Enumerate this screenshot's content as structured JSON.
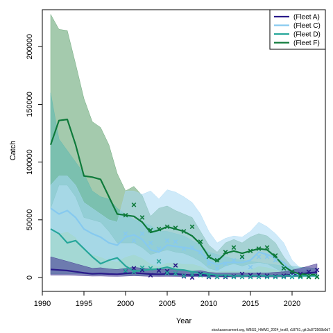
{
  "chart_data": {
    "type": "line",
    "xlabel": "Year",
    "ylabel": "Catch",
    "xlim": [
      1990,
      2024
    ],
    "ylim": [
      -12000,
      232000
    ],
    "x_ticks": [
      1990,
      1995,
      2000,
      2005,
      2010,
      2015,
      2020
    ],
    "y_ticks": [
      0,
      50000,
      100000,
      150000,
      200000
    ],
    "x_tick_labels": [
      "1990",
      "1995",
      "2000",
      "2005",
      "2010",
      "2015",
      "2020"
    ],
    "y_tick_labels": [
      "0",
      "50000",
      "100000",
      "150000",
      "200000"
    ],
    "grid": false,
    "legend_position": "top-right",
    "caption": "stockassessment.org, WBSS_HAWG_2024_test0, r18761, git:3c872568b0d7",
    "series": [
      {
        "name": "(Fleet A)",
        "color": "#2a1a8a",
        "band_color": "#3f2f8f",
        "x": [
          1991,
          1992,
          1993,
          1994,
          1995,
          1996,
          1997,
          1998,
          1999,
          2000,
          2001,
          2002,
          2003,
          2004,
          2005,
          2006,
          2007,
          2008,
          2009,
          2010,
          2011,
          2012,
          2013,
          2014,
          2015,
          2016,
          2017,
          2018,
          2019,
          2020,
          2021,
          2022,
          2023
        ],
        "y": [
          7000,
          6500,
          6000,
          5000,
          4000,
          3200,
          3500,
          3000,
          2800,
          3500,
          4000,
          3500,
          3000,
          2800,
          3000,
          3000,
          2500,
          2000,
          2500,
          1800,
          1500,
          1500,
          1500,
          1500,
          1500,
          1500,
          1500,
          1600,
          1800,
          2500,
          3000,
          4000,
          4500
        ],
        "lower": [
          2000,
          2000,
          2000,
          1800,
          1500,
          1200,
          1300,
          1100,
          1000,
          1200,
          1500,
          1200,
          1000,
          900,
          1000,
          900,
          800,
          600,
          800,
          500,
          500,
          500,
          500,
          500,
          500,
          500,
          500,
          500,
          600,
          800,
          1000,
          1500,
          1500
        ],
        "upper": [
          18000,
          16000,
          14000,
          12000,
          10000,
          8000,
          8500,
          7500,
          7000,
          8000,
          9000,
          8000,
          7500,
          7000,
          7500,
          7000,
          6500,
          5500,
          6000,
          4500,
          4000,
          4000,
          4000,
          4000,
          4000,
          4000,
          4000,
          4500,
          5000,
          6500,
          8000,
          10000,
          12000
        ],
        "observed_x": [
          2000,
          2001,
          2002,
          2003,
          2004,
          2005,
          2006,
          2007,
          2008,
          2009,
          2010,
          2011,
          2012,
          2013,
          2014,
          2015,
          2016,
          2017,
          2018,
          2019,
          2020,
          2021,
          2022,
          2023
        ],
        "observed_y": [
          5500,
          8000,
          6500,
          2000,
          6000,
          5500,
          10500,
          1000,
          0,
          3000,
          500,
          500,
          500,
          1000,
          3000,
          2000,
          2500,
          1500,
          1000,
          1500,
          3000,
          3000,
          5000,
          6500
        ]
      },
      {
        "name": "(Fleet C)",
        "color": "#86c9ef",
        "band_color": "#a8d8f4",
        "x": [
          1991,
          1992,
          1993,
          1994,
          1995,
          1996,
          1997,
          1998,
          1999,
          2000,
          2001,
          2002,
          2003,
          2004,
          2005,
          2006,
          2007,
          2008,
          2009,
          2010,
          2011,
          2012,
          2013,
          2014,
          2015,
          2016,
          2017,
          2018,
          2019,
          2020,
          2021,
          2022,
          2023
        ],
        "y": [
          60000,
          55000,
          58000,
          52000,
          42000,
          38000,
          35000,
          30000,
          28000,
          35000,
          37000,
          33000,
          24000,
          22000,
          28000,
          27000,
          26000,
          25000,
          22000,
          14000,
          11000,
          13000,
          13000,
          13000,
          15000,
          22000,
          20000,
          17000,
          13000,
          5000,
          2000,
          1500,
          1500
        ],
        "lower": [
          40000,
          38000,
          40000,
          35000,
          25000,
          20000,
          18000,
          15000,
          14000,
          18000,
          20000,
          17000,
          12000,
          10000,
          13000,
          13000,
          12000,
          12000,
          10000,
          6000,
          5000,
          6000,
          6000,
          6000,
          7000,
          10000,
          9000,
          7000,
          5000,
          2000,
          500,
          500,
          500
        ],
        "upper": [
          80000,
          88000,
          88000,
          80000,
          65000,
          60000,
          55000,
          50000,
          48000,
          75000,
          75000,
          72000,
          75000,
          68000,
          76000,
          74000,
          70000,
          65000,
          55000,
          40000,
          30000,
          34000,
          36000,
          35000,
          40000,
          48000,
          44000,
          38000,
          30000,
          15000,
          8000,
          6000,
          6000
        ],
        "observed_x": [
          2000,
          2001,
          2002,
          2003,
          2004,
          2005,
          2006,
          2007,
          2008,
          2009,
          2010,
          2011,
          2012,
          2013,
          2014,
          2015,
          2016,
          2017,
          2018,
          2019,
          2020,
          2021,
          2022,
          2023
        ],
        "observed_y": [
          38000,
          32000,
          38000,
          30000,
          25000,
          32000,
          31000,
          25000,
          26000,
          22000,
          12000,
          8000,
          12000,
          15000,
          17000,
          9000,
          18000,
          18000,
          15000,
          9000,
          1500,
          1000,
          1000,
          1000
        ]
      },
      {
        "name": "(Fleet D)",
        "color": "#26a69a",
        "band_color": "#5ab8b0",
        "x": [
          1991,
          1992,
          1993,
          1994,
          1995,
          1996,
          1997,
          1998,
          1999,
          2000,
          2001,
          2002,
          2003,
          2004,
          2005,
          2006,
          2007,
          2008,
          2009,
          2010,
          2011,
          2012,
          2013,
          2014,
          2015,
          2016,
          2017,
          2018,
          2019,
          2020,
          2021,
          2022,
          2023
        ],
        "y": [
          42000,
          38000,
          30000,
          32000,
          25000,
          18000,
          12000,
          15000,
          17000,
          10000,
          5500,
          6000,
          7000,
          7500,
          9000,
          7000,
          6500,
          5000,
          4000,
          3000,
          2000,
          2000,
          1500,
          1500,
          1500,
          1500,
          1500,
          1500,
          1500,
          1500,
          1500,
          1500,
          1500
        ],
        "lower": [
          3000,
          3000,
          3000,
          3000,
          3000,
          2500,
          2500,
          2500,
          2500,
          2000,
          2000,
          1800,
          1800,
          1800,
          1800,
          1500,
          1500,
          1500,
          1300,
          1000,
          1000,
          800,
          800,
          700,
          700,
          700,
          600,
          600,
          600,
          600,
          500,
          500,
          500
        ],
        "upper": [
          160000,
          120000,
          110000,
          100000,
          90000,
          75000,
          70000,
          68000,
          60000,
          55000,
          50000,
          48000,
          45000,
          40000,
          40000,
          38000,
          36000,
          32000,
          28000,
          22000,
          20000,
          18000,
          16000,
          15000,
          14000,
          13000,
          12000,
          11000,
          10000,
          10000,
          9000,
          8500,
          8000
        ],
        "observed_x": [
          2000,
          2001,
          2002,
          2003,
          2004,
          2005,
          2006,
          2007,
          2008,
          2009,
          2010,
          2011,
          2012,
          2013,
          2014,
          2015,
          2016,
          2017,
          2018,
          2019,
          2020,
          2021,
          2022,
          2023
        ],
        "observed_y": [
          6000,
          5000,
          8500,
          8000,
          14000,
          4000,
          3500,
          1500,
          2500,
          2000,
          1000,
          500,
          1000,
          500,
          500,
          500,
          500,
          500,
          500,
          500,
          500,
          500,
          500,
          500
        ]
      },
      {
        "name": "(Fleet F)",
        "color": "#0e7a3a",
        "band_color": "#5a9e6a",
        "x": [
          1991,
          1992,
          1993,
          1994,
          1995,
          1996,
          1997,
          1998,
          1999,
          2000,
          2001,
          2002,
          2003,
          2004,
          2005,
          2006,
          2007,
          2008,
          2009,
          2010,
          2011,
          2012,
          2013,
          2014,
          2015,
          2016,
          2017,
          2018,
          2019,
          2020,
          2021,
          2022,
          2023
        ],
        "y": [
          115000,
          136000,
          137000,
          115000,
          88000,
          87000,
          85000,
          70000,
          55000,
          54000,
          53000,
          48000,
          39000,
          41000,
          44000,
          42000,
          40000,
          36000,
          29000,
          18000,
          14000,
          21000,
          23000,
          21000,
          23000,
          25000,
          24000,
          18000,
          10000,
          5000,
          3000,
          2500,
          2500
        ],
        "lower": [
          60000,
          80000,
          80000,
          70000,
          52000,
          50000,
          48000,
          40000,
          30000,
          30000,
          30000,
          26000,
          20000,
          22000,
          24000,
          22000,
          21000,
          18000,
          14000,
          8000,
          6000,
          10000,
          12000,
          10000,
          12000,
          13000,
          12000,
          8000,
          4000,
          1500,
          800,
          600,
          600
        ],
        "upper": [
          228000,
          215000,
          214000,
          185000,
          155000,
          135000,
          130000,
          115000,
          90000,
          75000,
          79000,
          71000,
          53000,
          60000,
          62000,
          58000,
          55000,
          52000,
          40000,
          28000,
          22000,
          30000,
          33000,
          30000,
          35000,
          38000,
          36000,
          30000,
          18000,
          9000,
          6000,
          5000,
          5000
        ],
        "observed_x": [
          2000,
          2001,
          2002,
          2003,
          2004,
          2005,
          2006,
          2007,
          2008,
          2009,
          2010,
          2011,
          2012,
          2013,
          2014,
          2015,
          2016,
          2017,
          2018,
          2019,
          2020,
          2021,
          2022,
          2023
        ],
        "observed_y": [
          54000,
          63000,
          52000,
          41000,
          42000,
          44000,
          43000,
          40000,
          44000,
          31000,
          18000,
          15000,
          22000,
          26000,
          18000,
          23000,
          25000,
          26000,
          19000,
          8000,
          5000,
          1500,
          500,
          500
        ]
      }
    ]
  }
}
